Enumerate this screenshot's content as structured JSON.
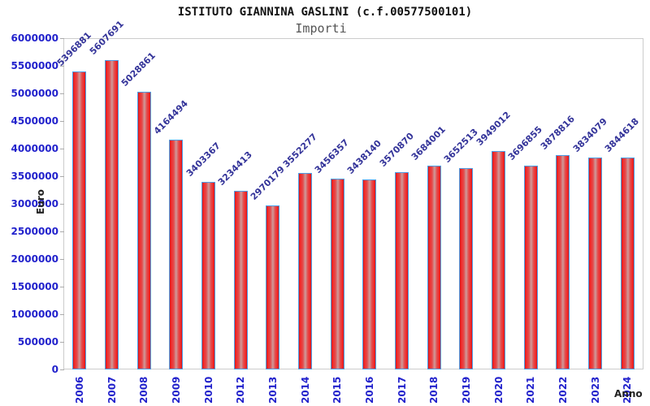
{
  "chart_data": {
    "type": "bar",
    "title": "ISTITUTO GIANNINA GASLINI (c.f.00577500101)",
    "subtitle": "Importi",
    "categories": [
      "2006",
      "2007",
      "2008",
      "2009",
      "2010",
      "2012",
      "2013",
      "2014",
      "2015",
      "2016",
      "2017",
      "2018",
      "2019",
      "2020",
      "2021",
      "2022",
      "2023",
      "2024"
    ],
    "values": [
      5396881,
      5607691,
      5028861,
      4164494,
      3403367,
      3234413,
      2970179,
      3552277,
      3456357,
      3438140,
      3570870,
      3684001,
      3652513,
      3949012,
      3696855,
      3878816,
      3834079,
      3844618
    ],
    "xlabel": "Anno",
    "ylabel": "Euro",
    "ylim": [
      0,
      6000000
    ],
    "yticks": [
      0,
      500000,
      1000000,
      1500000,
      2000000,
      2500000,
      3000000,
      3500000,
      4000000,
      4500000,
      5000000,
      5500000,
      6000000
    ],
    "grid": "horizontal-banded",
    "legend": "none",
    "colors": {
      "bar_fill": "#e03030",
      "bar_border": "#4d9fe8",
      "tick_label": "#2222cc",
      "value_label": "#333399",
      "band_gray": "#f2f2f2",
      "plot_border": "#cccccc",
      "title": "#111111",
      "subtitle": "#555555",
      "axis_title": "#222222"
    }
  }
}
